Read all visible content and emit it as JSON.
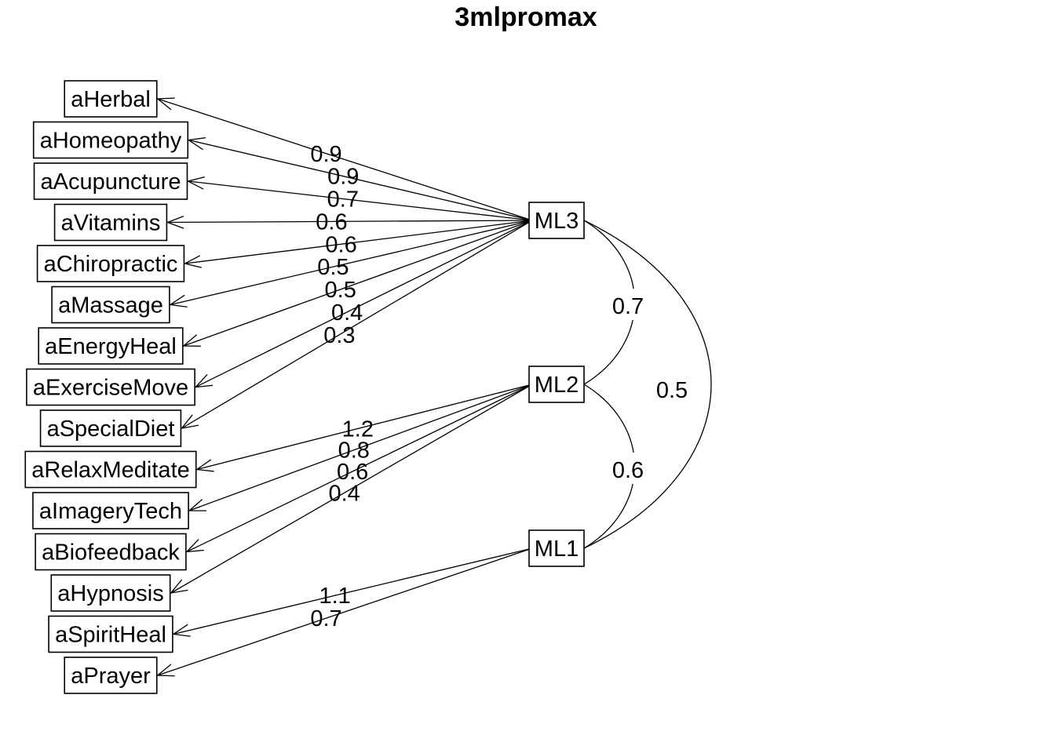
{
  "title": "3mlpromax",
  "factors": [
    {
      "id": "ML3",
      "label": "ML3"
    },
    {
      "id": "ML2",
      "label": "ML2"
    },
    {
      "id": "ML1",
      "label": "ML1"
    }
  ],
  "variables": [
    {
      "label": "aHerbal"
    },
    {
      "label": "aHomeopathy"
    },
    {
      "label": "aAcupuncture"
    },
    {
      "label": "aVitamins"
    },
    {
      "label": "aChiropractic"
    },
    {
      "label": "aMassage"
    },
    {
      "label": "aEnergyHeal"
    },
    {
      "label": "aExerciseMove"
    },
    {
      "label": "aSpecialDiet"
    },
    {
      "label": "aRelaxMeditate"
    },
    {
      "label": "aImageryTech"
    },
    {
      "label": "aBiofeedback"
    },
    {
      "label": "aHypnosis"
    },
    {
      "label": "aSpiritHeal"
    },
    {
      "label": "aPrayer"
    }
  ],
  "loadings": [
    {
      "from": "ML3",
      "to": "aHerbal",
      "value": "0.9"
    },
    {
      "from": "ML3",
      "to": "aHomeopathy",
      "value": "0.9"
    },
    {
      "from": "ML3",
      "to": "aAcupuncture",
      "value": "0.7"
    },
    {
      "from": "ML3",
      "to": "aVitamins",
      "value": "0.6"
    },
    {
      "from": "ML3",
      "to": "aChiropractic",
      "value": "0.6"
    },
    {
      "from": "ML3",
      "to": "aMassage",
      "value": "0.5"
    },
    {
      "from": "ML3",
      "to": "aEnergyHeal",
      "value": "0.5"
    },
    {
      "from": "ML3",
      "to": "aExerciseMove",
      "value": "0.4"
    },
    {
      "from": "ML3",
      "to": "aSpecialDiet",
      "value": "0.3"
    },
    {
      "from": "ML2",
      "to": "aRelaxMeditate",
      "value": "1.2"
    },
    {
      "from": "ML2",
      "to": "aImageryTech",
      "value": "0.8"
    },
    {
      "from": "ML2",
      "to": "aBiofeedback",
      "value": "0.6"
    },
    {
      "from": "ML2",
      "to": "aHypnosis",
      "value": "0.4"
    },
    {
      "from": "ML1",
      "to": "aSpiritHeal",
      "value": "1.1"
    },
    {
      "from": "ML1",
      "to": "aPrayer",
      "value": "0.7"
    }
  ],
  "correlations": [
    {
      "a": "ML3",
      "b": "ML2",
      "value": "0.7"
    },
    {
      "a": "ML2",
      "b": "ML1",
      "value": "0.6"
    },
    {
      "a": "ML3",
      "b": "ML1",
      "value": "0.5"
    }
  ]
}
